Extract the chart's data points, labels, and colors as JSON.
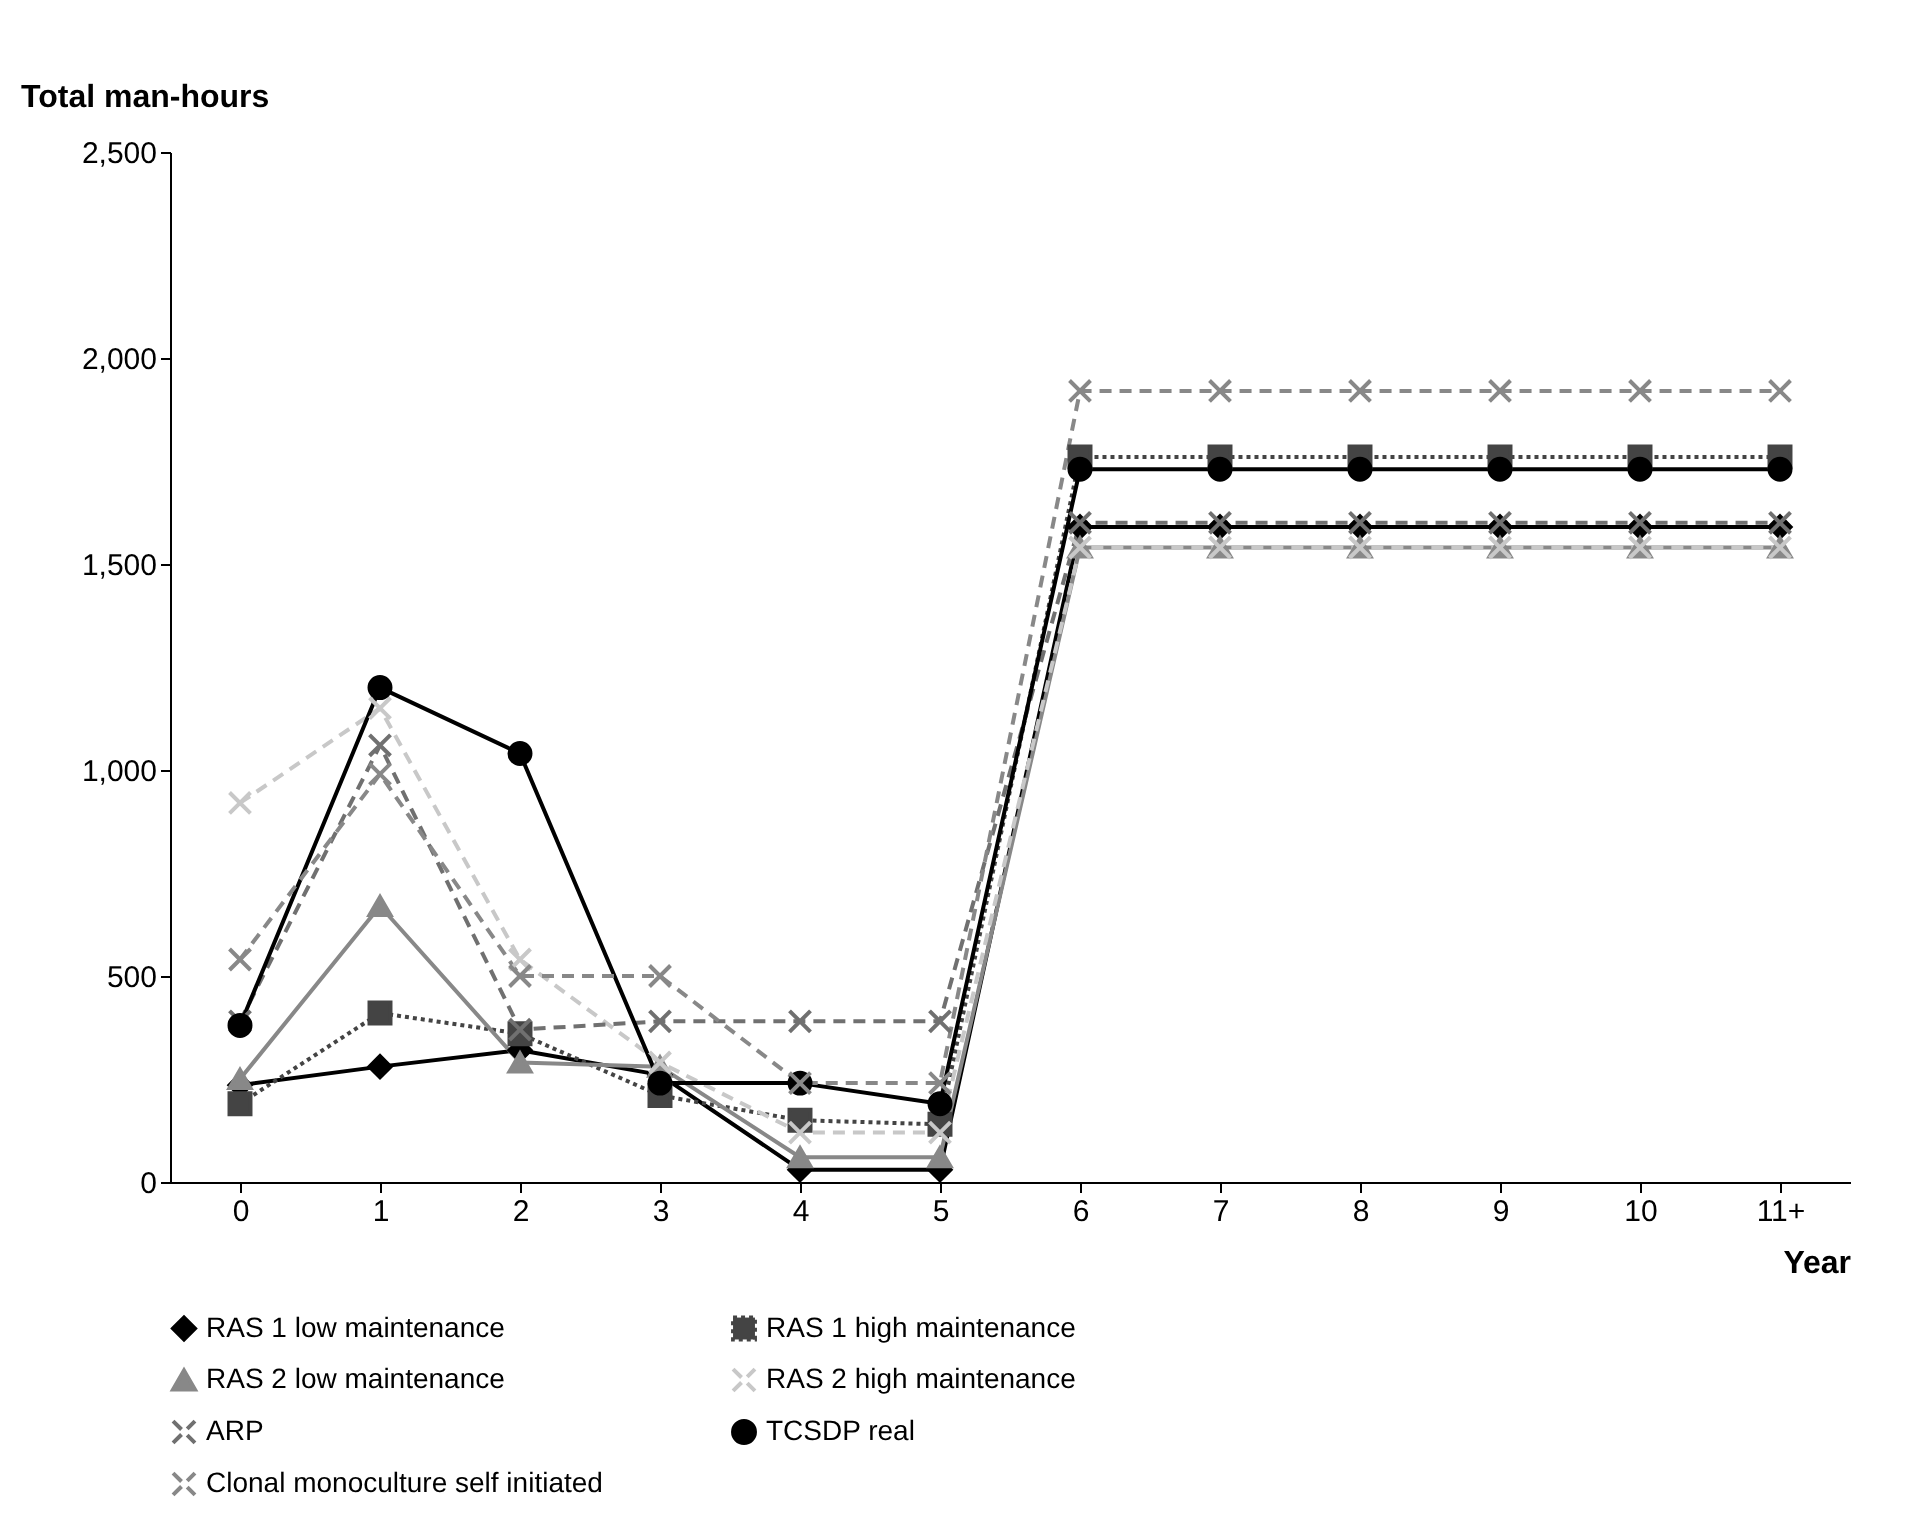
{
  "chart_data": {
    "type": "line",
    "xlabel": "Year",
    "ylabel": "Total man-hours",
    "categories": [
      "0",
      "1",
      "2",
      "3",
      "4",
      "5",
      "6",
      "7",
      "8",
      "9",
      "10",
      "11+"
    ],
    "ylim": [
      0,
      2500
    ],
    "yticks": [
      {
        "value": 0,
        "label": "0"
      },
      {
        "value": 500,
        "label": "500"
      },
      {
        "value": 1000,
        "label": "1,000"
      },
      {
        "value": 1500,
        "label": "1,500"
      },
      {
        "value": 2000,
        "label": "2,000"
      },
      {
        "value": 2500,
        "label": "2,500"
      }
    ],
    "grid": false,
    "legend": "bottom",
    "series": [
      {
        "name": "RAS 1 low maintenance",
        "color": "#000000",
        "marker": "diamond",
        "line_style": "solid",
        "values": [
          235,
          280,
          320,
          260,
          30,
          30,
          1590,
          1590,
          1590,
          1590,
          1590,
          1590
        ]
      },
      {
        "name": "RAS 1 high maintenance",
        "color": "#444444",
        "marker": "square",
        "line_style": "dotted",
        "values": [
          190,
          410,
          360,
          210,
          150,
          140,
          1760,
          1760,
          1760,
          1760,
          1760,
          1760
        ]
      },
      {
        "name": "RAS 2 low maintenance",
        "color": "#888888",
        "marker": "triangle",
        "line_style": "solid",
        "values": [
          250,
          670,
          290,
          280,
          60,
          60,
          1540,
          1540,
          1540,
          1540,
          1540,
          1540
        ]
      },
      {
        "name": "RAS 2 high maintenance",
        "color": "#c8c8c8",
        "marker": "cross",
        "line_style": "dashed",
        "values": [
          920,
          1150,
          540,
          290,
          120,
          120,
          1540,
          1540,
          1540,
          1540,
          1540,
          1540
        ]
      },
      {
        "name": "ARP",
        "color": "#707070",
        "marker": "cross",
        "line_style": "dashed",
        "values": [
          390,
          1060,
          370,
          390,
          390,
          390,
          1600,
          1600,
          1600,
          1600,
          1600,
          1600
        ]
      },
      {
        "name": "TCSDP real",
        "color": "#000000",
        "marker": "circle",
        "line_style": "solid",
        "values": [
          380,
          1200,
          1040,
          240,
          240,
          190,
          1730,
          1730,
          1730,
          1730,
          1730,
          1730
        ]
      },
      {
        "name": "Clonal monoculture self initiated",
        "color": "#888888",
        "marker": "cross",
        "line_style": "dashed",
        "values": [
          540,
          990,
          500,
          500,
          240,
          240,
          1920,
          1920,
          1920,
          1920,
          1920,
          1920
        ]
      }
    ]
  }
}
